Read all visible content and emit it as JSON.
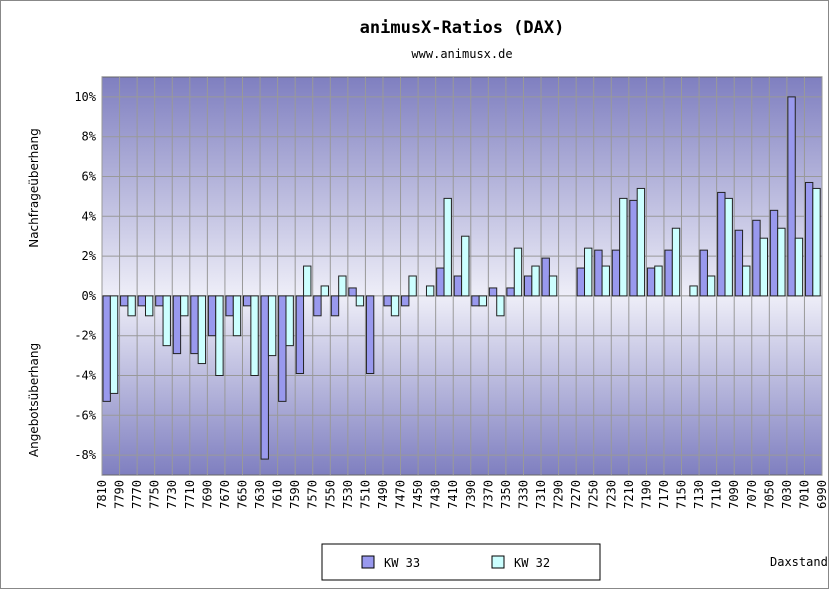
{
  "chart_data": {
    "type": "bar",
    "title": "animusX-Ratios (DAX)",
    "subtitle": "www.animusx.de",
    "y_label_top": "Nachfrageüberhang",
    "y_label_bottom": "Angebotsüberhang",
    "x_label": "Daxstand",
    "categories": [
      "7810",
      "7790",
      "7770",
      "7750",
      "7730",
      "7710",
      "7690",
      "7670",
      "7650",
      "7630",
      "7610",
      "7590",
      "7570",
      "7550",
      "7530",
      "7510",
      "7490",
      "7470",
      "7450",
      "7430",
      "7410",
      "7390",
      "7370",
      "7350",
      "7330",
      "7310",
      "7290",
      "7270",
      "7250",
      "7230",
      "7210",
      "7190",
      "7170",
      "7150",
      "7130",
      "7110",
      "7090",
      "7070",
      "7050",
      "7030",
      "7010",
      "6990"
    ],
    "series": [
      {
        "name": "KW 33",
        "color": "#9999ee",
        "values": [
          -5.3,
          -0.5,
          -0.5,
          -0.5,
          -2.9,
          -2.9,
          -2,
          -1,
          -0.5,
          -8.2,
          -5.3,
          -3.9,
          -1,
          -1,
          0.4,
          -3.9,
          -0.5,
          -0.5,
          0,
          1.4,
          1,
          -0.5,
          0.4,
          0.4,
          1,
          1.9,
          0,
          1.4,
          2.3,
          2.3,
          4.8,
          1.4,
          2.3,
          0,
          2.3,
          5.2,
          3.3,
          3.8,
          4.3,
          10,
          5.7,
          null
        ]
      },
      {
        "name": "KW 32",
        "color": "#ccffff",
        "values": [
          -4.9,
          -1,
          -1,
          -2.5,
          -1,
          -3.4,
          -4,
          -2,
          -4,
          -3,
          -2.5,
          1.5,
          0.5,
          1,
          -0.5,
          0,
          -1,
          1,
          0.5,
          4.9,
          3,
          -0.5,
          -1,
          2.4,
          1.5,
          1,
          0,
          2.4,
          1.5,
          4.9,
          5.4,
          1.5,
          3.4,
          0.5,
          1,
          4.9,
          1.5,
          2.9,
          3.4,
          2.9,
          5.4,
          null
        ]
      }
    ],
    "ylim": [
      -9,
      11
    ],
    "yticks": [
      {
        "value": -8,
        "label": "-8%"
      },
      {
        "value": -6,
        "label": "-6%"
      },
      {
        "value": -4,
        "label": "-4%"
      },
      {
        "value": -2,
        "label": "-2%"
      },
      {
        "value": 0,
        "label": "0%"
      },
      {
        "value": 2,
        "label": "2%"
      },
      {
        "value": 4,
        "label": "4%"
      },
      {
        "value": 6,
        "label": "6%"
      },
      {
        "value": 8,
        "label": "8%"
      },
      {
        "value": 10,
        "label": "10%"
      }
    ],
    "grid": true,
    "legend": "bottom"
  }
}
